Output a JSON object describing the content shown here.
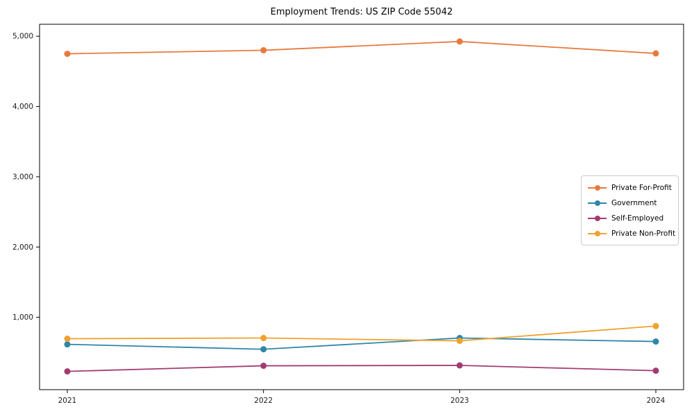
{
  "chart_data": {
    "type": "line",
    "title": "Employment Trends: US ZIP Code 55042",
    "xlabel": "",
    "ylabel": "",
    "grid": false,
    "legend_position": "center right",
    "categories": [
      "2021",
      "2022",
      "2023",
      "2024"
    ],
    "series": [
      {
        "name": "Private For-Profit",
        "color": "#E8793E",
        "values": [
          4750,
          4800,
          4925,
          4755
        ]
      },
      {
        "name": "Government",
        "color": "#2E86A8",
        "values": [
          615,
          545,
          705,
          655
        ]
      },
      {
        "name": "Self-Employed",
        "color": "#A23B72",
        "values": [
          230,
          310,
          315,
          240
        ]
      },
      {
        "name": "Private Non-Profit",
        "color": "#F0A12F",
        "values": [
          695,
          705,
          665,
          875
        ]
      }
    ],
    "y_ticks": [
      {
        "value": 1000,
        "label": "1,000"
      },
      {
        "value": 2000,
        "label": "2,000"
      },
      {
        "value": 3000,
        "label": "3,000"
      },
      {
        "value": 4000,
        "label": "4,000"
      },
      {
        "value": 5000,
        "label": "5,000"
      }
    ],
    "ylim": [
      -30,
      5170
    ],
    "axis_color": "#000000",
    "background_color": "#ffffff"
  }
}
